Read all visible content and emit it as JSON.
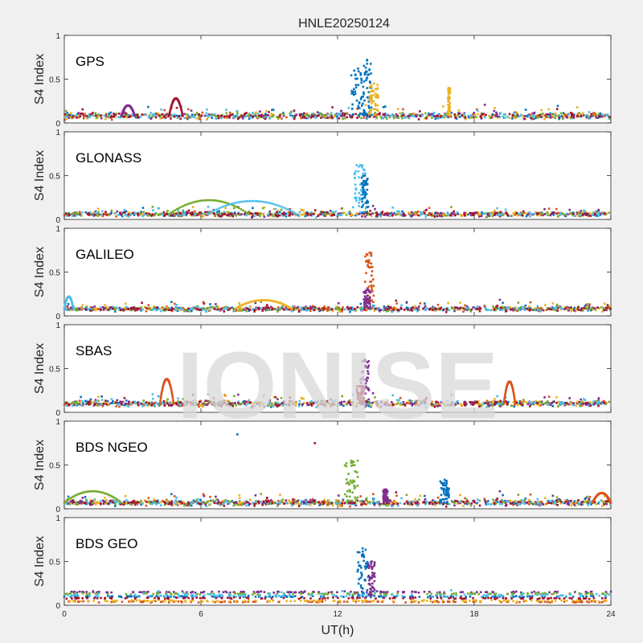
{
  "figure": {
    "title": "HNLE20250124",
    "watermark": "IONISE",
    "background": "#f0f0f0",
    "axes_background": "#ffffff",
    "axis_color": "#262626",
    "series_colors": [
      "#0072bd",
      "#d95319",
      "#edb120",
      "#7e2f8e",
      "#77ac30",
      "#4dbeee",
      "#a2142f"
    ]
  },
  "chart_data": [
    {
      "type": "scatter",
      "panel": "GPS",
      "ylabel": "S4 Index",
      "xlabel": "",
      "xlim": [
        0,
        24
      ],
      "ylim": [
        0,
        1
      ],
      "xticks": [
        0,
        6,
        12,
        18,
        24
      ],
      "yticks": [
        0,
        0.5,
        1
      ],
      "ytick_labels": [
        "0",
        "0.5",
        "1"
      ],
      "baseline": 0.08,
      "spread": 0.05,
      "bursts": [
        {
          "x": 12.9,
          "x_width": 0.6,
          "peak": 0.62,
          "color": 0
        },
        {
          "x": 13.3,
          "x_width": 0.4,
          "peak": 0.72,
          "color": 0
        },
        {
          "x": 13.6,
          "x_width": 0.4,
          "peak": 0.45,
          "color": 2
        },
        {
          "x": 16.9,
          "x_width": 0.1,
          "peak": 0.4,
          "color": 2
        }
      ],
      "arcs": [
        {
          "x0": 4.6,
          "x1": 5.2,
          "ymax": 0.28,
          "color": 6
        },
        {
          "x0": 2.5,
          "x1": 3.1,
          "ymax": 0.2,
          "color": 3
        }
      ]
    },
    {
      "type": "scatter",
      "panel": "GLONASS",
      "ylabel": "S4 Index",
      "xlabel": "",
      "xlim": [
        0,
        24
      ],
      "ylim": [
        0,
        1
      ],
      "xticks": [
        0,
        6,
        12,
        18,
        24
      ],
      "yticks": [
        0,
        0.5,
        1
      ],
      "ytick_labels": [
        "0",
        "0.5",
        "1"
      ],
      "baseline": 0.06,
      "spread": 0.04,
      "bursts": [
        {
          "x": 13.0,
          "x_width": 0.5,
          "peak": 0.62,
          "color": 5
        },
        {
          "x": 13.2,
          "x_width": 0.3,
          "peak": 0.5,
          "color": 0
        }
      ],
      "arcs": [
        {
          "x0": 4.6,
          "x1": 8.1,
          "ymax": 0.22,
          "color": 4
        },
        {
          "x0": 6.3,
          "x1": 10.2,
          "ymax": 0.21,
          "color": 5
        }
      ]
    },
    {
      "type": "scatter",
      "panel": "GALILEO",
      "ylabel": "S4 Index",
      "xlabel": "",
      "xlim": [
        0,
        24
      ],
      "ylim": [
        0,
        1
      ],
      "xticks": [
        0,
        6,
        12,
        18,
        24
      ],
      "yticks": [
        0,
        0.5,
        1
      ],
      "ytick_labels": [
        "0",
        "0.5",
        "1"
      ],
      "baseline": 0.08,
      "spread": 0.04,
      "bursts": [
        {
          "x": 13.4,
          "x_width": 0.4,
          "peak": 0.72,
          "color": 1
        },
        {
          "x": 13.3,
          "x_width": 0.3,
          "peak": 0.3,
          "color": 3
        }
      ],
      "arcs": [
        {
          "x0": 0.0,
          "x1": 0.4,
          "ymax": 0.22,
          "color": 5
        },
        {
          "x0": 7.5,
          "x1": 10.0,
          "ymax": 0.18,
          "color": 2
        }
      ]
    },
    {
      "type": "scatter",
      "panel": "SBAS",
      "ylabel": "S4 Index",
      "xlabel": "",
      "xlim": [
        0,
        24
      ],
      "ylim": [
        0,
        1
      ],
      "xticks": [
        0,
        6,
        12,
        18,
        24
      ],
      "yticks": [
        0,
        0.5,
        1
      ],
      "ytick_labels": [
        "0",
        "0.5",
        "1"
      ],
      "baseline": 0.1,
      "spread": 0.05,
      "bursts": [
        {
          "x": 13.2,
          "x_width": 0.4,
          "peak": 0.6,
          "color": 3
        },
        {
          "x": 13.0,
          "x_width": 0.3,
          "peak": 0.3,
          "color": 6
        }
      ],
      "arcs": [
        {
          "x0": 4.2,
          "x1": 4.8,
          "ymax": 0.38,
          "color": 1
        },
        {
          "x0": 19.3,
          "x1": 19.8,
          "ymax": 0.35,
          "color": 1
        }
      ]
    },
    {
      "type": "scatter",
      "panel": "BDS NGEO",
      "ylabel": "S4 Index",
      "xlabel": "",
      "xlim": [
        0,
        24
      ],
      "ylim": [
        0,
        1
      ],
      "xticks": [
        0,
        6,
        12,
        18,
        24
      ],
      "yticks": [
        0,
        0.5,
        1
      ],
      "ytick_labels": [
        "0",
        "0.5",
        "1"
      ],
      "baseline": 0.07,
      "spread": 0.05,
      "bursts": [
        {
          "x": 12.6,
          "x_width": 0.6,
          "peak": 0.55,
          "color": 4
        },
        {
          "x": 16.7,
          "x_width": 0.4,
          "peak": 0.33,
          "color": 0
        },
        {
          "x": 14.1,
          "x_width": 0.2,
          "peak": 0.22,
          "color": 3
        }
      ],
      "outliers": [
        {
          "x": 7.6,
          "y": 0.85,
          "color": 0
        },
        {
          "x": 11.0,
          "y": 0.75,
          "color": 6
        }
      ],
      "arcs": [
        {
          "x0": 0.0,
          "x1": 2.5,
          "ymax": 0.2,
          "color": 4
        },
        {
          "x0": 23.2,
          "x1": 24.0,
          "ymax": 0.18,
          "color": 1
        }
      ]
    },
    {
      "type": "scatter",
      "panel": "BDS GEO",
      "ylabel": "S4 Index",
      "xlabel": "UT(h)",
      "xlim": [
        0,
        24
      ],
      "ylim": [
        0,
        1
      ],
      "xticks": [
        0,
        6,
        12,
        18,
        24
      ],
      "yticks": [
        0,
        0.5,
        1
      ],
      "ytick_labels": [
        "0",
        "0.5",
        "1"
      ],
      "baseline": 0.11,
      "spread": 0.03,
      "bands": [
        {
          "y": 0.15,
          "color": 3
        },
        {
          "y": 0.13,
          "color": 4
        },
        {
          "y": 0.1,
          "color": 0
        },
        {
          "y": 0.08,
          "color": 6
        },
        {
          "y": 0.05,
          "color": 2
        },
        {
          "y": 0.04,
          "color": 1
        }
      ],
      "bursts": [
        {
          "x": 13.1,
          "x_width": 0.5,
          "peak": 0.65,
          "color": 0
        },
        {
          "x": 13.5,
          "x_width": 0.3,
          "peak": 0.5,
          "color": 3
        }
      ],
      "arcs": []
    }
  ]
}
